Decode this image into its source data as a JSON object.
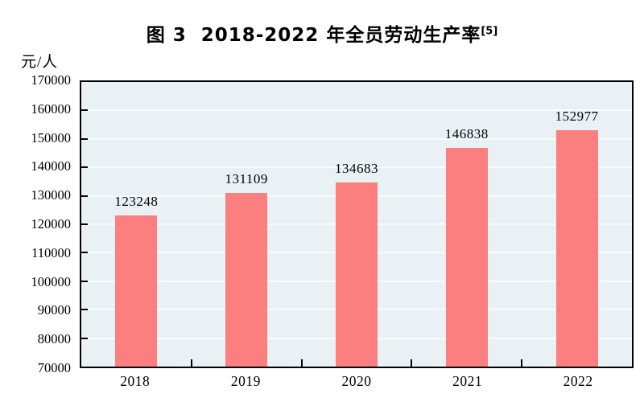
{
  "figure": {
    "caption_prefix": "图 3",
    "caption_text": "2018-2022 年全员劳动生产率",
    "caption_superscript": "[5]"
  },
  "chart_data": {
    "type": "bar",
    "title": "图 3 2018-2022 年全员劳动生产率[5]",
    "unit_label": "元/人",
    "categories": [
      "2018",
      "2019",
      "2020",
      "2021",
      "2022"
    ],
    "values": [
      123248,
      131109,
      134683,
      146838,
      152977
    ],
    "value_labels": [
      "123248",
      "131109",
      "134683",
      "146838",
      "152977"
    ],
    "ylim": [
      70000,
      170000
    ],
    "ytick_step": 10000,
    "ytick_labels": [
      "170000",
      "160000",
      "150000",
      "140000",
      "130000",
      "120000",
      "110000",
      "100000",
      "90000",
      "80000",
      "70000"
    ],
    "grid": "horizontal gridlines at each y tick, light lines on tinted panel",
    "legend": "none",
    "colors": {
      "bar": "#FB7F7F",
      "plot_background": "#EAF1F4",
      "grid_line": "#F9FCFD",
      "axis": "#000000",
      "text": "#000000",
      "page_background": "#FFFFFF"
    }
  }
}
